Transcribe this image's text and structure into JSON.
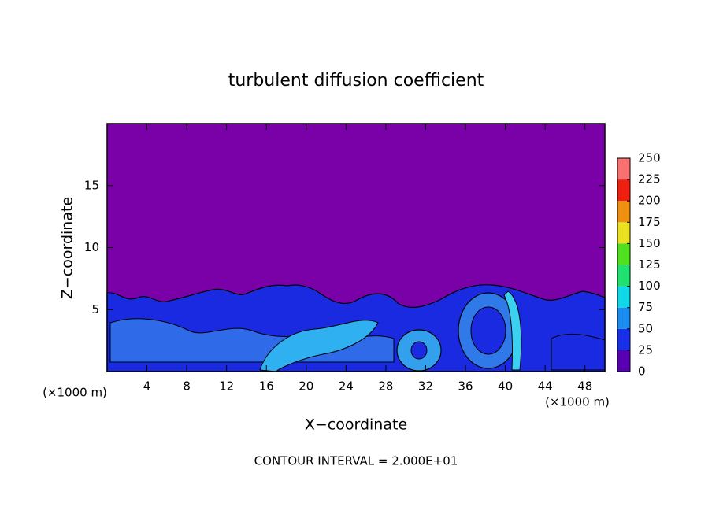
{
  "chart_data": {
    "type": "contour",
    "title": "turbulent diffusion coefficient",
    "x_label": "X−coordinate",
    "y_label": "Z−coordinate",
    "x_unit_labels": [
      "(×1000 m)",
      "(×1000 m)"
    ],
    "footnote": "CONTOUR INTERVAL = 2.000E+01",
    "xlim": [
      0,
      50
    ],
    "xticks": [
      4,
      8,
      12,
      16,
      20,
      24,
      28,
      32,
      36,
      40,
      44,
      48
    ],
    "ylim": [
      0,
      20
    ],
    "yticks": [
      5,
      10,
      15
    ],
    "background_color": "#7a00a8",
    "colorbar": {
      "lim": [
        0,
        250
      ],
      "ticks": [
        0,
        25,
        50,
        75,
        100,
        125,
        150,
        175,
        200,
        225,
        250
      ],
      "colors": [
        "#5a00b4",
        "#1830e8",
        "#1a8cf0",
        "#10d8e8",
        "#20e070",
        "#50e020",
        "#e8e020",
        "#f09010",
        "#f02010",
        "#f87070"
      ]
    }
  }
}
